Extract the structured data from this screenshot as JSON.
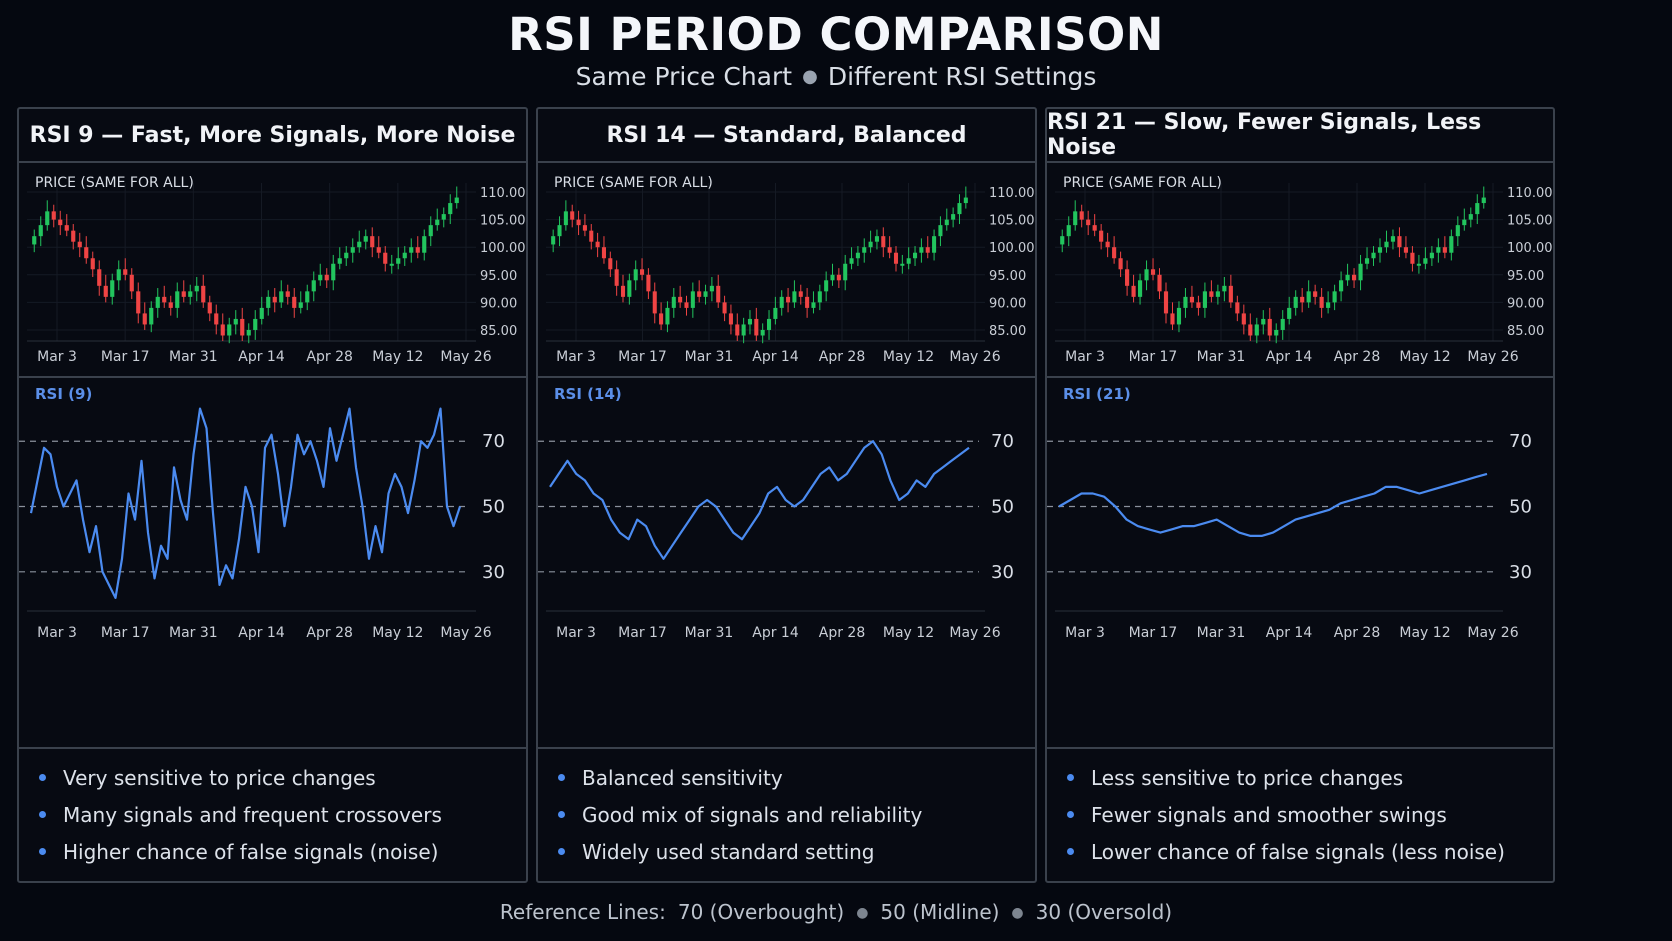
{
  "header": {
    "title": "RSI PERIOD COMPARISON",
    "subtitle_left": "Same Price Chart",
    "subtitle_right": "Different RSI Settings"
  },
  "colors": {
    "background": "#050810",
    "border": "#3a414c",
    "up_candle": "#22c55e",
    "down_candle": "#ef4444",
    "rsi_line": "#4b8bf0",
    "rsi_label": "#5b8fe8",
    "reference_line": "#8a919c"
  },
  "panels": [
    {
      "title": "RSI 9 — Fast, More Signals, More Noise",
      "price_label": "PRICE (SAME FOR ALL)",
      "rsi_label": "RSI (9)",
      "bullets": [
        "Very sensitive to price changes",
        "Many signals and frequent crossovers",
        "Higher chance of false signals (noise)"
      ]
    },
    {
      "title": "RSI 14 — Standard, Balanced",
      "price_label": "PRICE (SAME FOR ALL)",
      "rsi_label": "RSI (14)",
      "bullets": [
        "Balanced sensitivity",
        "Good mix of signals and reliability",
        "Widely used standard setting"
      ]
    },
    {
      "title": "RSI 21 — Slow, Fewer Signals, Less Noise",
      "price_label": "PRICE (SAME FOR ALL)",
      "rsi_label": "RSI (21)",
      "bullets": [
        "Less sensitive to price changes",
        "Fewer signals and smoother swings",
        "Lower chance of false signals (less noise)"
      ]
    }
  ],
  "footer": {
    "label": "Reference Lines:",
    "items": [
      "70 (Overbought)",
      "50 (Midline)",
      "30 (Oversold)"
    ]
  },
  "chart_data": [
    {
      "type": "candlestick",
      "title": "PRICE (SAME FOR ALL)",
      "x_tick_labels": [
        "Mar 3",
        "Mar 17",
        "Mar 31",
        "Apr 14",
        "Apr 28",
        "May 12",
        "May 26"
      ],
      "y_tick_labels": [
        "110.00",
        "105.00",
        "100.00",
        "95.00",
        "90.00",
        "85.00"
      ],
      "ylim": [
        83,
        112
      ],
      "close": [
        102,
        104,
        106.5,
        105,
        104,
        103,
        101,
        100,
        98,
        96,
        93,
        91,
        94,
        96,
        95,
        92,
        88,
        86,
        89,
        91,
        90,
        89,
        92,
        91,
        92,
        93,
        90,
        88,
        86,
        84,
        86,
        87,
        84,
        85,
        87,
        89,
        91,
        90,
        92,
        91,
        89,
        90,
        92,
        94,
        95,
        94,
        97,
        98,
        99,
        100,
        101,
        102,
        100,
        99,
        97,
        97,
        98,
        99,
        100,
        99,
        102,
        104,
        105,
        106,
        108,
        109
      ]
    },
    {
      "type": "line",
      "title": "RSI (9)",
      "x_tick_labels": [
        "Mar 3",
        "Mar 17",
        "Mar 31",
        "Apr 14",
        "Apr 28",
        "May 12",
        "May 26"
      ],
      "y_tick_labels": [
        "70",
        "50",
        "30"
      ],
      "ylim": [
        18,
        86
      ],
      "reference_lines": [
        70,
        50,
        30
      ],
      "values": [
        48,
        58,
        68,
        66,
        56,
        50,
        54,
        58,
        46,
        36,
        44,
        30,
        26,
        22,
        34,
        54,
        46,
        64,
        42,
        28,
        38,
        34,
        62,
        52,
        46,
        66,
        80,
        74,
        48,
        26,
        32,
        28,
        40,
        56,
        50,
        36,
        68,
        72,
        60,
        44,
        56,
        72,
        66,
        70,
        64,
        56,
        74,
        64,
        72,
        80,
        62,
        50,
        34,
        44,
        36,
        54,
        60,
        56,
        48,
        58,
        70,
        68,
        72,
        80,
        50,
        44,
        50
      ]
    },
    {
      "type": "line",
      "title": "RSI (14)",
      "x_tick_labels": [
        "Mar 3",
        "Mar 17",
        "Mar 31",
        "Apr 14",
        "Apr 28",
        "May 12",
        "May 26"
      ],
      "y_tick_labels": [
        "70",
        "50",
        "30"
      ],
      "ylim": [
        18,
        86
      ],
      "reference_lines": [
        70,
        50,
        30
      ],
      "values": [
        56,
        60,
        64,
        60,
        58,
        54,
        52,
        46,
        42,
        40,
        46,
        44,
        38,
        34,
        38,
        42,
        46,
        50,
        52,
        50,
        46,
        42,
        40,
        44,
        48,
        54,
        56,
        52,
        50,
        52,
        56,
        60,
        62,
        58,
        60,
        64,
        68,
        70,
        66,
        58,
        52,
        54,
        58,
        56,
        60,
        62,
        64,
        66,
        68
      ]
    },
    {
      "type": "line",
      "title": "RSI (21)",
      "x_tick_labels": [
        "Mar 3",
        "Mar 17",
        "Mar 31",
        "Apr 14",
        "Apr 28",
        "May 12",
        "May 26"
      ],
      "y_tick_labels": [
        "70",
        "50",
        "30"
      ],
      "ylim": [
        18,
        86
      ],
      "reference_lines": [
        70,
        50,
        30
      ],
      "values": [
        50,
        52,
        54,
        54,
        53,
        50,
        46,
        44,
        43,
        42,
        43,
        44,
        44,
        45,
        46,
        44,
        42,
        41,
        41,
        42,
        44,
        46,
        47,
        48,
        49,
        51,
        52,
        53,
        54,
        56,
        56,
        55,
        54,
        55,
        56,
        57,
        58,
        59,
        60
      ]
    }
  ]
}
